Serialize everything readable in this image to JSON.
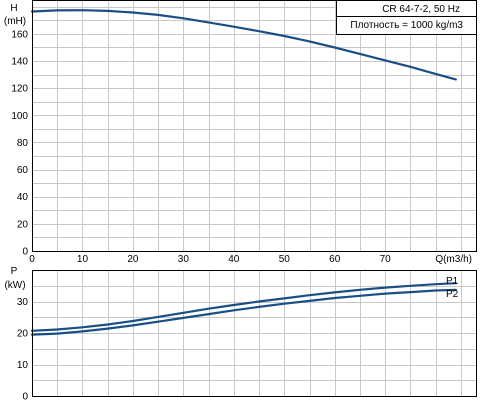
{
  "info": {
    "model": "CR 64-7-2, 50 Hz",
    "density": "Плотность = 1000 kg/m3"
  },
  "chart_data": [
    {
      "type": "line",
      "title": "",
      "ylabel": "H",
      "yunit": "(mH)",
      "xlabel": "Q(m3/h)",
      "xlim": [
        0,
        88
      ],
      "ylim": [
        0,
        185
      ],
      "xticks": [
        0,
        10,
        20,
        30,
        40,
        50,
        60,
        70
      ],
      "yticks": [
        0,
        20,
        40,
        60,
        80,
        100,
        120,
        140,
        160
      ],
      "grid": true,
      "series": [
        {
          "name": "",
          "color": "#1a4f86",
          "x": [
            0,
            5,
            10,
            15,
            20,
            25,
            30,
            35,
            40,
            45,
            50,
            55,
            60,
            65,
            70,
            75,
            80,
            84
          ],
          "y": [
            176.5,
            177.3,
            177.5,
            177,
            175.8,
            174,
            171.5,
            168.5,
            165.3,
            162,
            158.5,
            154.5,
            150,
            145.3,
            140.5,
            135.8,
            130.5,
            126.5
          ]
        }
      ]
    },
    {
      "type": "line",
      "title": "",
      "ylabel": "P",
      "yunit": "(kW)",
      "xlim": [
        0,
        88
      ],
      "ylim": [
        0,
        40
      ],
      "yticks": [
        0,
        10,
        20,
        30
      ],
      "grid": true,
      "series": [
        {
          "name": "P1",
          "color": "#1a4f86",
          "x": [
            0,
            5,
            10,
            15,
            20,
            25,
            30,
            35,
            40,
            45,
            50,
            55,
            60,
            65,
            70,
            75,
            80,
            84
          ],
          "y": [
            20.7,
            21.1,
            21.8,
            22.7,
            23.8,
            25.1,
            26.4,
            27.7,
            28.9,
            30,
            31,
            32,
            32.9,
            33.7,
            34.4,
            35,
            35.5,
            35.8
          ]
        },
        {
          "name": "P2",
          "color": "#1a4f86",
          "x": [
            0,
            5,
            10,
            15,
            20,
            25,
            30,
            35,
            40,
            45,
            50,
            55,
            60,
            65,
            70,
            75,
            80,
            84
          ],
          "y": [
            19.5,
            19.8,
            20.5,
            21.4,
            22.4,
            23.6,
            24.8,
            26,
            27.2,
            28.3,
            29.3,
            30.2,
            31.1,
            31.8,
            32.5,
            33,
            33.5,
            33.7
          ]
        }
      ]
    }
  ]
}
